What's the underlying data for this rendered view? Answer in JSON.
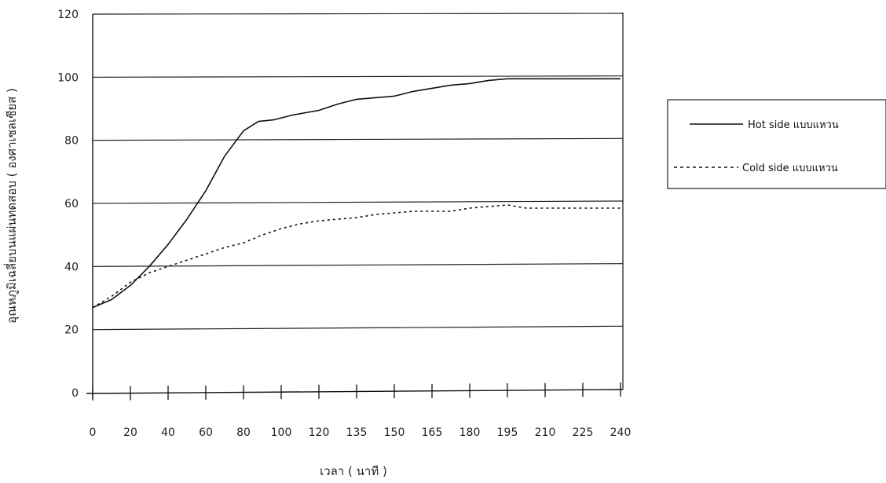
{
  "chart_data": {
    "type": "line",
    "title": "",
    "xlabel": "เวลา ( นาที )",
    "ylabel": "อุณหภูมิเฉลี่ยบนแผ่นทดสอบ ( องศาเซลเซียส )",
    "categories": [
      "0",
      "20",
      "40",
      "60",
      "80",
      "100",
      "120",
      "135",
      "150",
      "165",
      "180",
      "195",
      "210",
      "225",
      "240"
    ],
    "ylim": [
      0,
      120
    ],
    "yticks": [
      "0",
      "20",
      "40",
      "60",
      "80",
      "100",
      "120"
    ],
    "grid": "horizontal",
    "legend_position": "right",
    "series": [
      {
        "name": "Hot side แบบแหวน",
        "style": "solid",
        "color": "#111111",
        "points": [
          [
            0,
            27
          ],
          [
            0.5,
            29.5
          ],
          [
            1,
            34
          ],
          [
            1.5,
            40
          ],
          [
            2,
            47
          ],
          [
            2.5,
            55
          ],
          [
            3,
            64
          ],
          [
            3.5,
            75
          ],
          [
            4,
            83
          ],
          [
            4.4,
            86
          ],
          [
            4.8,
            86.5
          ],
          [
            5.3,
            88
          ],
          [
            6,
            89.5
          ],
          [
            6.5,
            91.5
          ],
          [
            7,
            93
          ],
          [
            7.5,
            93.5
          ],
          [
            8,
            94
          ],
          [
            8.5,
            95.5
          ],
          [
            9,
            96.5
          ],
          [
            9.5,
            97.5
          ],
          [
            10,
            98
          ],
          [
            10.5,
            99
          ],
          [
            11,
            99.5
          ],
          [
            11.5,
            99.5
          ],
          [
            12,
            99.5
          ],
          [
            12.5,
            99.5
          ],
          [
            13,
            99.5
          ],
          [
            13.5,
            99.5
          ],
          [
            14,
            99.5
          ]
        ]
      },
      {
        "name": "Cold side แบบแหวน",
        "style": "dashed",
        "color": "#111111",
        "points": [
          [
            0,
            27
          ],
          [
            0.5,
            30.5
          ],
          [
            1,
            35
          ],
          [
            1.5,
            38
          ],
          [
            2,
            40
          ],
          [
            2.5,
            42
          ],
          [
            3,
            44
          ],
          [
            3.5,
            46
          ],
          [
            4,
            47.5
          ],
          [
            4.5,
            50
          ],
          [
            5,
            52
          ],
          [
            5.5,
            53.5
          ],
          [
            6,
            54.5
          ],
          [
            6.5,
            55
          ],
          [
            7,
            55.5
          ],
          [
            7.5,
            56.5
          ],
          [
            8,
            57
          ],
          [
            8.5,
            57.5
          ],
          [
            9,
            57.5
          ],
          [
            9.5,
            57.5
          ],
          [
            10,
            58.5
          ],
          [
            10.5,
            59
          ],
          [
            11,
            59.5
          ],
          [
            11.5,
            58.5
          ],
          [
            12,
            58.5
          ],
          [
            12.5,
            58.5
          ],
          [
            13,
            58.5
          ],
          [
            13.5,
            58.5
          ],
          [
            14,
            58.5
          ]
        ]
      }
    ]
  }
}
